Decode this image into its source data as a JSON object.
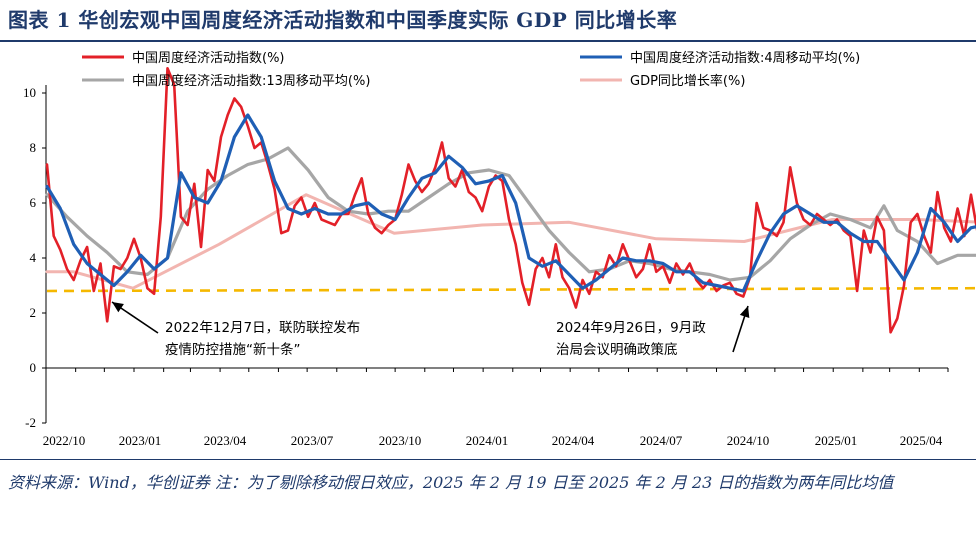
{
  "figure_title": "图表 1   华创宏观中国周度经济活动指数和中国季度实际 GDP 同比增长率",
  "footnote": "资料来源：Wind，华创证券   注：为了剔除移动假日效应，2025 年 2 月 19 日至 2025 年 2 月 23 日的指数为两年同比均值",
  "chart_data": {
    "type": "line",
    "ylim": [
      -2,
      10
    ],
    "yticks": [
      "-2",
      "0",
      "2",
      "4",
      "6",
      "8",
      "10"
    ],
    "xticks": [
      "2022/10",
      "2023/01",
      "2023/04",
      "2023/07",
      "2023/10",
      "2024/01",
      "2024/04",
      "2024/07",
      "2024/10",
      "2025/01",
      "2025/04"
    ],
    "xlim": [
      "2022/10",
      "2025/05"
    ],
    "legend_position": "top",
    "series": [
      {
        "name": "中国周度经济活动指数(%)",
        "color": "#e32028",
        "points": [
          [
            "2022/10/02",
            7.4
          ],
          [
            "2022/10/09",
            4.8
          ],
          [
            "2022/10/16",
            4.3
          ],
          [
            "2022/10/23",
            3.6
          ],
          [
            "2022/10/30",
            3.2
          ],
          [
            "2022/11/06",
            3.9
          ],
          [
            "2022/11/13",
            4.4
          ],
          [
            "2022/11/20",
            2.8
          ],
          [
            "2022/11/27",
            3.8
          ],
          [
            "2022/12/04",
            1.7
          ],
          [
            "2022/12/11",
            3.7
          ],
          [
            "2022/12/18",
            3.6
          ],
          [
            "2022/12/25",
            4.0
          ],
          [
            "2023/01/01",
            4.7
          ],
          [
            "2023/01/08",
            4.0
          ],
          [
            "2023/01/15",
            2.9
          ],
          [
            "2023/01/22",
            2.7
          ],
          [
            "2023/01/29",
            5.5
          ],
          [
            "2023/02/05",
            10.9
          ],
          [
            "2023/02/12",
            10.3
          ],
          [
            "2023/02/19",
            5.5
          ],
          [
            "2023/02/26",
            5.2
          ],
          [
            "2023/03/05",
            6.7
          ],
          [
            "2023/03/12",
            4.4
          ],
          [
            "2023/03/19",
            7.2
          ],
          [
            "2023/03/26",
            6.8
          ],
          [
            "2023/04/02",
            8.4
          ],
          [
            "2023/04/09",
            9.2
          ],
          [
            "2023/04/16",
            9.8
          ],
          [
            "2023/04/23",
            9.5
          ],
          [
            "2023/04/30",
            8.8
          ],
          [
            "2023/05/07",
            8.0
          ],
          [
            "2023/05/14",
            8.2
          ],
          [
            "2023/05/21",
            7.4
          ],
          [
            "2023/05/28",
            6.5
          ],
          [
            "2023/06/04",
            4.9
          ],
          [
            "2023/06/11",
            5.0
          ],
          [
            "2023/06/18",
            5.9
          ],
          [
            "2023/06/25",
            6.2
          ],
          [
            "2023/07/02",
            5.5
          ],
          [
            "2023/07/09",
            6.0
          ],
          [
            "2023/07/16",
            5.4
          ],
          [
            "2023/07/23",
            5.3
          ],
          [
            "2023/07/30",
            5.2
          ],
          [
            "2023/08/06",
            5.6
          ],
          [
            "2023/08/13",
            5.6
          ],
          [
            "2023/08/20",
            6.3
          ],
          [
            "2023/08/27",
            6.9
          ],
          [
            "2023/09/03",
            5.6
          ],
          [
            "2023/09/10",
            5.1
          ],
          [
            "2023/09/17",
            4.9
          ],
          [
            "2023/09/24",
            5.2
          ],
          [
            "2023/10/01",
            5.4
          ],
          [
            "2023/10/08",
            6.3
          ],
          [
            "2023/10/15",
            7.4
          ],
          [
            "2023/10/22",
            6.8
          ],
          [
            "2023/10/29",
            6.4
          ],
          [
            "2023/11/05",
            6.7
          ],
          [
            "2023/11/12",
            7.3
          ],
          [
            "2023/11/19",
            8.2
          ],
          [
            "2023/11/26",
            6.9
          ],
          [
            "2023/12/03",
            6.6
          ],
          [
            "2023/12/10",
            7.2
          ],
          [
            "2023/12/17",
            6.4
          ],
          [
            "2023/12/24",
            6.2
          ],
          [
            "2023/12/31",
            5.7
          ],
          [
            "2024/01/07",
            6.6
          ],
          [
            "2024/01/14",
            7.0
          ],
          [
            "2024/01/21",
            6.8
          ],
          [
            "2024/01/28",
            5.4
          ],
          [
            "2024/02/04",
            4.5
          ],
          [
            "2024/02/11",
            3.1
          ],
          [
            "2024/02/18",
            2.3
          ],
          [
            "2024/02/25",
            3.6
          ],
          [
            "2024/03/03",
            4.0
          ],
          [
            "2024/03/10",
            3.3
          ],
          [
            "2024/03/17",
            4.5
          ],
          [
            "2024/03/24",
            3.3
          ],
          [
            "2024/03/31",
            2.9
          ],
          [
            "2024/04/07",
            2.2
          ],
          [
            "2024/04/14",
            3.2
          ],
          [
            "2024/04/21",
            2.7
          ],
          [
            "2024/04/28",
            3.5
          ],
          [
            "2024/05/05",
            3.3
          ],
          [
            "2024/05/12",
            4.1
          ],
          [
            "2024/05/19",
            3.7
          ],
          [
            "2024/05/26",
            4.5
          ],
          [
            "2024/06/02",
            3.9
          ],
          [
            "2024/06/09",
            3.3
          ],
          [
            "2024/06/16",
            3.6
          ],
          [
            "2024/06/23",
            4.5
          ],
          [
            "2024/06/30",
            3.5
          ],
          [
            "2024/07/07",
            3.7
          ],
          [
            "2024/07/14",
            3.1
          ],
          [
            "2024/07/21",
            3.8
          ],
          [
            "2024/07/28",
            3.4
          ],
          [
            "2024/08/04",
            3.8
          ],
          [
            "2024/08/11",
            3.2
          ],
          [
            "2024/08/18",
            2.9
          ],
          [
            "2024/08/25",
            3.2
          ],
          [
            "2024/09/01",
            2.8
          ],
          [
            "2024/09/08",
            3.0
          ],
          [
            "2024/09/15",
            3.1
          ],
          [
            "2024/09/22",
            2.7
          ],
          [
            "2024/09/29",
            2.6
          ],
          [
            "2024/10/06",
            3.3
          ],
          [
            "2024/10/13",
            6.0
          ],
          [
            "2024/10/20",
            5.1
          ],
          [
            "2024/10/27",
            5.0
          ],
          [
            "2024/11/03",
            4.8
          ],
          [
            "2024/11/10",
            5.3
          ],
          [
            "2024/11/17",
            7.3
          ],
          [
            "2024/11/24",
            6.0
          ],
          [
            "2024/12/01",
            5.4
          ],
          [
            "2024/12/08",
            5.2
          ],
          [
            "2024/12/15",
            5.6
          ],
          [
            "2024/12/22",
            5.4
          ],
          [
            "2024/12/29",
            5.2
          ],
          [
            "2025/01/05",
            5.4
          ],
          [
            "2025/01/12",
            5.0
          ],
          [
            "2025/01/19",
            4.8
          ],
          [
            "2025/01/26",
            2.8
          ],
          [
            "2025/02/02",
            5.0
          ],
          [
            "2025/02/09",
            4.2
          ],
          [
            "2025/02/16",
            5.5
          ],
          [
            "2025/02/23",
            5.0
          ],
          [
            "2025/03/02",
            1.3
          ],
          [
            "2025/03/09",
            1.8
          ],
          [
            "2025/03/16",
            3.0
          ],
          [
            "2025/03/23",
            5.3
          ],
          [
            "2025/03/30",
            5.6
          ],
          [
            "2025/04/06",
            4.8
          ],
          [
            "2025/04/13",
            4.2
          ],
          [
            "2025/04/20",
            6.4
          ],
          [
            "2025/04/27",
            5.1
          ],
          [
            "2025/05/04",
            4.6
          ],
          [
            "2025/05/11",
            5.8
          ],
          [
            "2025/05/18",
            4.8
          ],
          [
            "2025/05/25",
            6.3
          ],
          [
            "2025/06/01",
            4.9
          ],
          [
            "2025/06/08",
            5.7
          ]
        ]
      },
      {
        "name": "中国周度经济活动指数:4周移动平均(%)",
        "color": "#1f5fb5",
        "points": [
          [
            "2022/10/02",
            6.6
          ],
          [
            "2022/10/16",
            5.8
          ],
          [
            "2022/10/30",
            4.5
          ],
          [
            "2022/11/13",
            3.8
          ],
          [
            "2022/11/27",
            3.4
          ],
          [
            "2022/12/11",
            3.0
          ],
          [
            "2022/12/25",
            3.5
          ],
          [
            "2023/01/08",
            4.1
          ],
          [
            "2023/01/22",
            3.6
          ],
          [
            "2023/02/05",
            4.0
          ],
          [
            "2023/02/19",
            7.1
          ],
          [
            "2023/03/05",
            6.2
          ],
          [
            "2023/03/19",
            6.0
          ],
          [
            "2023/04/02",
            6.8
          ],
          [
            "2023/04/16",
            8.4
          ],
          [
            "2023/04/30",
            9.2
          ],
          [
            "2023/05/14",
            8.4
          ],
          [
            "2023/05/28",
            6.8
          ],
          [
            "2023/06/11",
            5.8
          ],
          [
            "2023/06/25",
            5.6
          ],
          [
            "2023/07/09",
            5.8
          ],
          [
            "2023/07/23",
            5.6
          ],
          [
            "2023/08/06",
            5.6
          ],
          [
            "2023/08/20",
            5.9
          ],
          [
            "2023/09/03",
            6.0
          ],
          [
            "2023/09/17",
            5.6
          ],
          [
            "2023/10/01",
            5.4
          ],
          [
            "2023/10/15",
            6.2
          ],
          [
            "2023/10/29",
            6.9
          ],
          [
            "2023/11/12",
            7.1
          ],
          [
            "2023/11/26",
            7.7
          ],
          [
            "2023/12/10",
            7.3
          ],
          [
            "2023/12/24",
            6.7
          ],
          [
            "2024/01/07",
            6.8
          ],
          [
            "2024/01/21",
            7.0
          ],
          [
            "2024/02/04",
            6.0
          ],
          [
            "2024/02/18",
            4.0
          ],
          [
            "2024/03/03",
            3.7
          ],
          [
            "2024/03/17",
            3.9
          ],
          [
            "2024/03/31",
            3.4
          ],
          [
            "2024/04/14",
            2.9
          ],
          [
            "2024/04/28",
            3.2
          ],
          [
            "2024/05/12",
            3.6
          ],
          [
            "2024/05/26",
            4.0
          ],
          [
            "2024/06/09",
            3.9
          ],
          [
            "2024/06/23",
            3.9
          ],
          [
            "2024/07/07",
            3.8
          ],
          [
            "2024/07/21",
            3.5
          ],
          [
            "2024/08/04",
            3.5
          ],
          [
            "2024/08/18",
            3.1
          ],
          [
            "2024/09/01",
            3.0
          ],
          [
            "2024/09/15",
            2.9
          ],
          [
            "2024/09/29",
            2.8
          ],
          [
            "2024/10/13",
            3.9
          ],
          [
            "2024/10/27",
            4.9
          ],
          [
            "2024/11/10",
            5.6
          ],
          [
            "2024/11/24",
            5.9
          ],
          [
            "2024/12/08",
            5.6
          ],
          [
            "2024/12/22",
            5.3
          ],
          [
            "2025/01/05",
            5.3
          ],
          [
            "2025/01/19",
            4.9
          ],
          [
            "2025/02/02",
            4.6
          ],
          [
            "2025/02/16",
            4.6
          ],
          [
            "2025/03/02",
            3.9
          ],
          [
            "2025/03/16",
            3.2
          ],
          [
            "2025/03/30",
            4.2
          ],
          [
            "2025/04/13",
            5.8
          ],
          [
            "2025/04/27",
            5.3
          ],
          [
            "2025/05/11",
            4.6
          ],
          [
            "2025/05/25",
            5.1
          ],
          [
            "2025/06/08",
            5.2
          ]
        ]
      },
      {
        "name": "中国周度经济活动指数:13周移动平均(%)",
        "color": "#a6a6a6",
        "points": [
          [
            "2022/10/02",
            6.3
          ],
          [
            "2022/10/23",
            5.5
          ],
          [
            "2022/11/13",
            4.8
          ],
          [
            "2022/12/04",
            4.2
          ],
          [
            "2022/12/25",
            3.5
          ],
          [
            "2023/01/15",
            3.4
          ],
          [
            "2023/02/05",
            4.0
          ],
          [
            "2023/02/26",
            5.7
          ],
          [
            "2023/03/19",
            6.5
          ],
          [
            "2023/04/09",
            7.0
          ],
          [
            "2023/04/30",
            7.4
          ],
          [
            "2023/05/21",
            7.6
          ],
          [
            "2023/06/11",
            8.0
          ],
          [
            "2023/07/02",
            7.2
          ],
          [
            "2023/07/23",
            6.2
          ],
          [
            "2023/08/13",
            5.7
          ],
          [
            "2023/09/03",
            5.6
          ],
          [
            "2023/09/24",
            5.7
          ],
          [
            "2023/10/15",
            5.7
          ],
          [
            "2023/11/05",
            6.2
          ],
          [
            "2023/11/26",
            6.7
          ],
          [
            "2023/12/17",
            7.1
          ],
          [
            "2024/01/07",
            7.2
          ],
          [
            "2024/01/28",
            7.0
          ],
          [
            "2024/02/18",
            6.0
          ],
          [
            "2024/03/10",
            5.0
          ],
          [
            "2024/03/31",
            4.2
          ],
          [
            "2024/04/21",
            3.5
          ],
          [
            "2024/05/12",
            3.6
          ],
          [
            "2024/06/02",
            3.9
          ],
          [
            "2024/06/23",
            3.8
          ],
          [
            "2024/07/14",
            3.6
          ],
          [
            "2024/08/04",
            3.5
          ],
          [
            "2024/08/25",
            3.4
          ],
          [
            "2024/09/15",
            3.2
          ],
          [
            "2024/10/06",
            3.3
          ],
          [
            "2024/10/27",
            3.9
          ],
          [
            "2024/11/17",
            4.7
          ],
          [
            "2024/12/08",
            5.2
          ],
          [
            "2024/12/29",
            5.6
          ],
          [
            "2025/01/19",
            5.4
          ],
          [
            "2025/02/09",
            5.1
          ],
          [
            "2025/02/23",
            5.9
          ],
          [
            "2025/03/09",
            5.0
          ],
          [
            "2025/03/30",
            4.6
          ],
          [
            "2025/04/20",
            3.8
          ],
          [
            "2025/05/11",
            4.1
          ],
          [
            "2025/06/08",
            4.1
          ]
        ]
      },
      {
        "name": "GDP同比增长率(%)",
        "color": "#f2b5b0",
        "points": [
          [
            "2022/10/02",
            3.5
          ],
          [
            "2022/10/30",
            3.5
          ],
          [
            "2022/12/31",
            2.9
          ],
          [
            "2023/03/31",
            4.5
          ],
          [
            "2023/06/30",
            6.3
          ],
          [
            "2023/09/30",
            4.9
          ],
          [
            "2023/12/31",
            5.2
          ],
          [
            "2024/03/31",
            5.3
          ],
          [
            "2024/06/30",
            4.7
          ],
          [
            "2024/09/30",
            4.6
          ],
          [
            "2024/12/31",
            5.4
          ],
          [
            "2025/03/31",
            5.4
          ],
          [
            "2025/06/08",
            5.3
          ]
        ]
      },
      {
        "name": "",
        "color": "#f5b800",
        "dashed": true,
        "points": [
          [
            "2022/10/02",
            2.8
          ],
          [
            "2025/06/08",
            2.9
          ]
        ]
      }
    ],
    "annotations": [
      {
        "lines": [
          "2022年12月7日，联防联控发布",
          "疫情防控措施“新十条”"
        ],
        "target": [
          "2022/12/07",
          3.0
        ]
      },
      {
        "lines": [
          "2024年9月26日，9月政",
          "治局会议明确政策底"
        ],
        "target": [
          "2024/09/26",
          2.7
        ]
      }
    ]
  }
}
